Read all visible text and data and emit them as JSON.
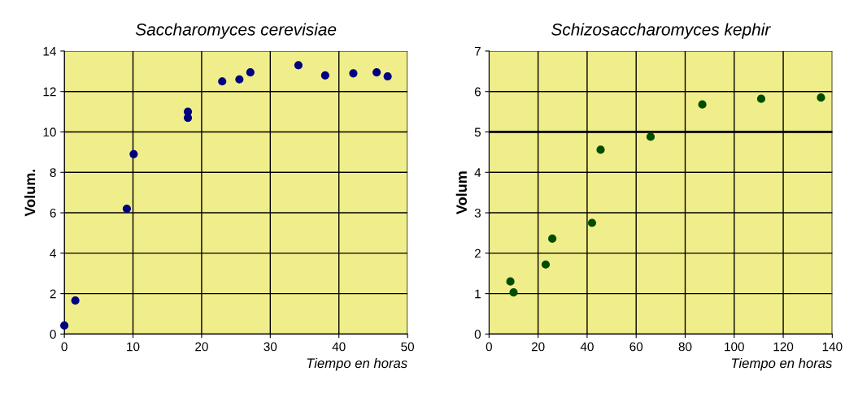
{
  "chart_data": [
    {
      "type": "scatter",
      "title": "Saccharomyces cerevisiae",
      "xlabel": "Tiempo en horas",
      "ylabel": "Volum.",
      "series": [
        {
          "color": "#000080",
          "x": [
            0,
            1.6,
            9.1,
            10.1,
            18,
            18,
            23,
            25.5,
            27.1,
            34.1,
            38,
            42.1,
            45.5,
            47.1
          ],
          "values": [
            0.42,
            1.66,
            6.2,
            8.9,
            11.0,
            10.7,
            12.5,
            12.6,
            12.95,
            13.3,
            12.8,
            12.9,
            12.95,
            12.75
          ]
        }
      ],
      "xlim": [
        0,
        50
      ],
      "xticks": [
        0,
        10,
        20,
        30,
        40,
        50
      ],
      "ylim": [
        0,
        14
      ],
      "yticks": [
        0,
        2,
        4,
        6,
        8,
        10,
        12,
        14
      ],
      "grid": true,
      "marker": "circle"
    },
    {
      "type": "scatter",
      "title": "Schizosaccharomyces kephir",
      "xlabel": "Tiempo en horas",
      "ylabel": "Volum",
      "series": [
        {
          "color": "#004d00",
          "x": [
            8.7,
            10,
            23.1,
            25.8,
            42,
            45.5,
            65.9,
            87,
            111,
            135.4
          ],
          "values": [
            1.3,
            1.03,
            1.72,
            2.36,
            2.75,
            4.56,
            4.88,
            5.68,
            5.82,
            5.85
          ]
        }
      ],
      "xlim": [
        0,
        140
      ],
      "xticks": [
        0,
        20,
        40,
        60,
        80,
        100,
        120,
        140
      ],
      "ylim": [
        0,
        7
      ],
      "yticks": [
        0,
        1,
        2,
        3,
        4,
        5,
        6,
        7
      ],
      "grid": true,
      "marker": "circle",
      "ref_lines": [
        {
          "axis": "y",
          "value": 5,
          "color": "#000000"
        }
      ]
    }
  ]
}
